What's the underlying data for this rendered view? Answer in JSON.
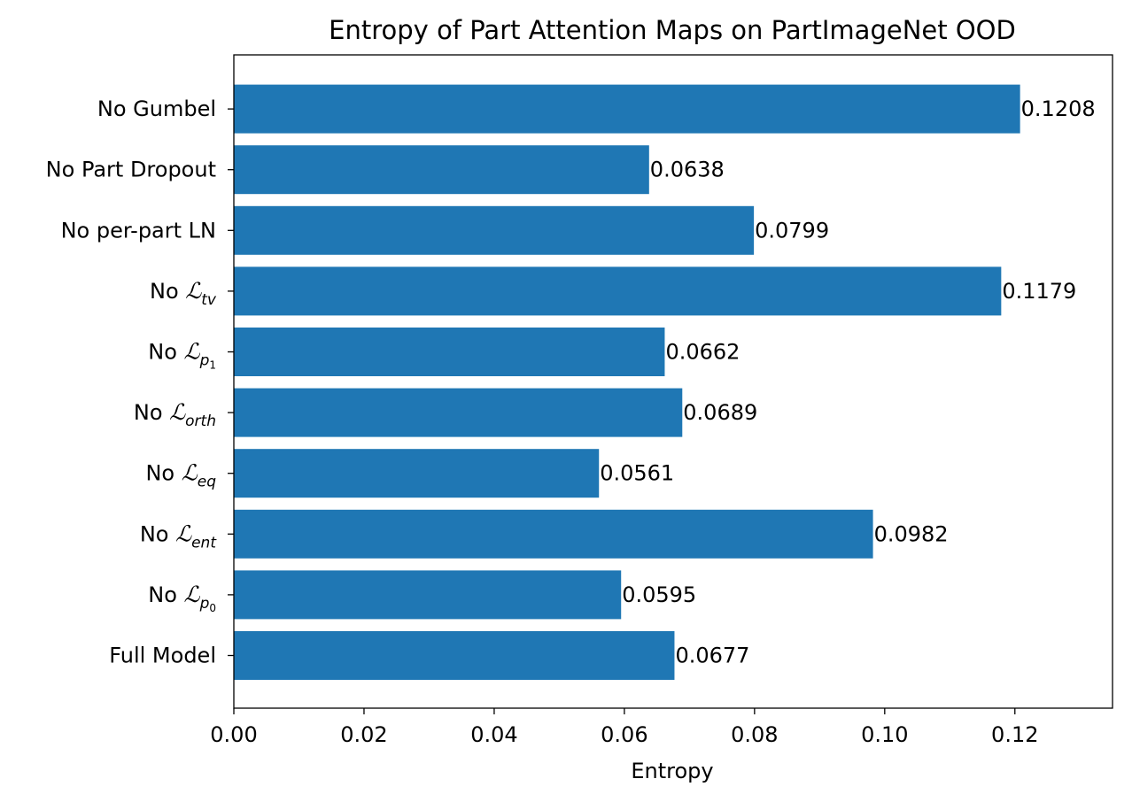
{
  "chart_data": {
    "type": "bar",
    "orientation": "horizontal",
    "title": "Entropy of Part Attention Maps on PartImageNet OOD",
    "xlabel": "Entropy",
    "ylabel": "",
    "xlim": [
      0.0,
      0.135
    ],
    "xticks": [
      "0.00",
      "0.02",
      "0.04",
      "0.06",
      "0.08",
      "0.10",
      "0.12"
    ],
    "grid": false,
    "color": "#1f77b4",
    "categories": [
      {
        "prefix": "Full Model"
      },
      {
        "prefix": "No ",
        "symbol": "ℒ",
        "sub": "p",
        "subsub": "0"
      },
      {
        "prefix": "No ",
        "symbol": "ℒ",
        "sub": "ent"
      },
      {
        "prefix": "No ",
        "symbol": "ℒ",
        "sub": "eq"
      },
      {
        "prefix": "No ",
        "symbol": "ℒ",
        "sub": "orth"
      },
      {
        "prefix": "No ",
        "symbol": "ℒ",
        "sub": "p",
        "subsub": "1"
      },
      {
        "prefix": "No ",
        "symbol": "ℒ",
        "sub": "tv"
      },
      {
        "prefix": "No per-part LN"
      },
      {
        "prefix": "No Part Dropout"
      },
      {
        "prefix": "No Gumbel"
      }
    ],
    "values": [
      0.0677,
      0.0595,
      0.0982,
      0.0561,
      0.0689,
      0.0662,
      0.1179,
      0.0799,
      0.0638,
      0.1208
    ],
    "data_labels": [
      "0.0677",
      "0.0595",
      "0.0982",
      "0.0561",
      "0.0689",
      "0.0662",
      "0.1179",
      "0.0799",
      "0.0638",
      "0.1208"
    ]
  }
}
